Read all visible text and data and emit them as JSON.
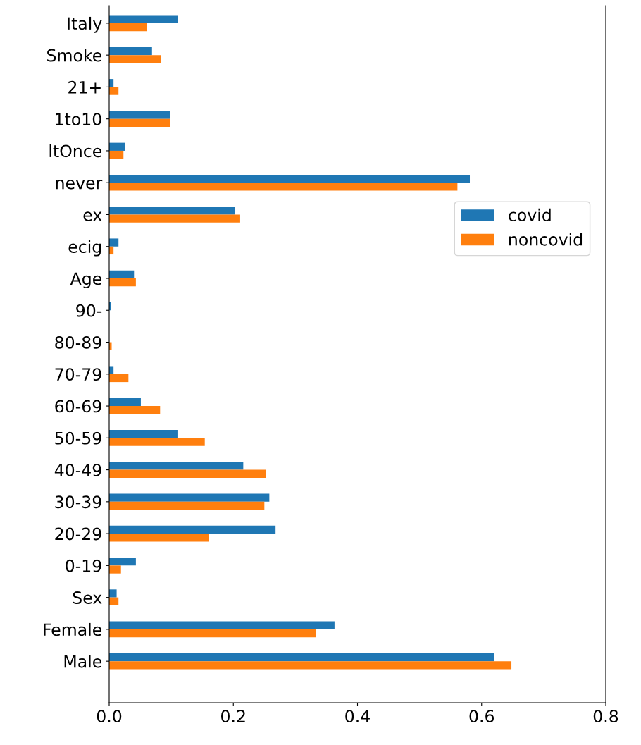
{
  "chart_data": {
    "type": "bar",
    "orientation": "horizontal",
    "categories": [
      "Italy",
      "Smoke",
      "21+",
      "1to10",
      "ltOnce",
      "never",
      "ex",
      "ecig",
      "Age",
      "90-",
      "80-89",
      "70-79",
      "60-69",
      "50-59",
      "40-49",
      "30-39",
      "20-29",
      "0-19",
      "Sex",
      "Female",
      "Male"
    ],
    "series": [
      {
        "name": "covid",
        "color": "#1f77b4",
        "values": [
          0.111,
          0.069,
          0.007,
          0.098,
          0.025,
          0.581,
          0.203,
          0.015,
          0.04,
          0.003,
          0,
          0.007,
          0.051,
          0.11,
          0.216,
          0.258,
          0.268,
          0.043,
          0.012,
          0.363,
          0.62
        ]
      },
      {
        "name": "noncovid",
        "color": "#ff7f0e",
        "values": [
          0.061,
          0.083,
          0.015,
          0.098,
          0.023,
          0.561,
          0.211,
          0.007,
          0.043,
          0,
          0.004,
          0.031,
          0.082,
          0.154,
          0.252,
          0.25,
          0.161,
          0.019,
          0.015,
          0.333,
          0.648
        ]
      }
    ],
    "xlim": [
      0,
      0.8
    ],
    "xticks": [
      {
        "value": 0,
        "label": "0.0"
      },
      {
        "value": 0.2,
        "label": "0.2"
      },
      {
        "value": 0.4,
        "label": "0.4"
      },
      {
        "value": 0.6,
        "label": "0.6"
      },
      {
        "value": 0.8,
        "label": "0.8"
      }
    ],
    "grid": false,
    "legend": "center right"
  }
}
